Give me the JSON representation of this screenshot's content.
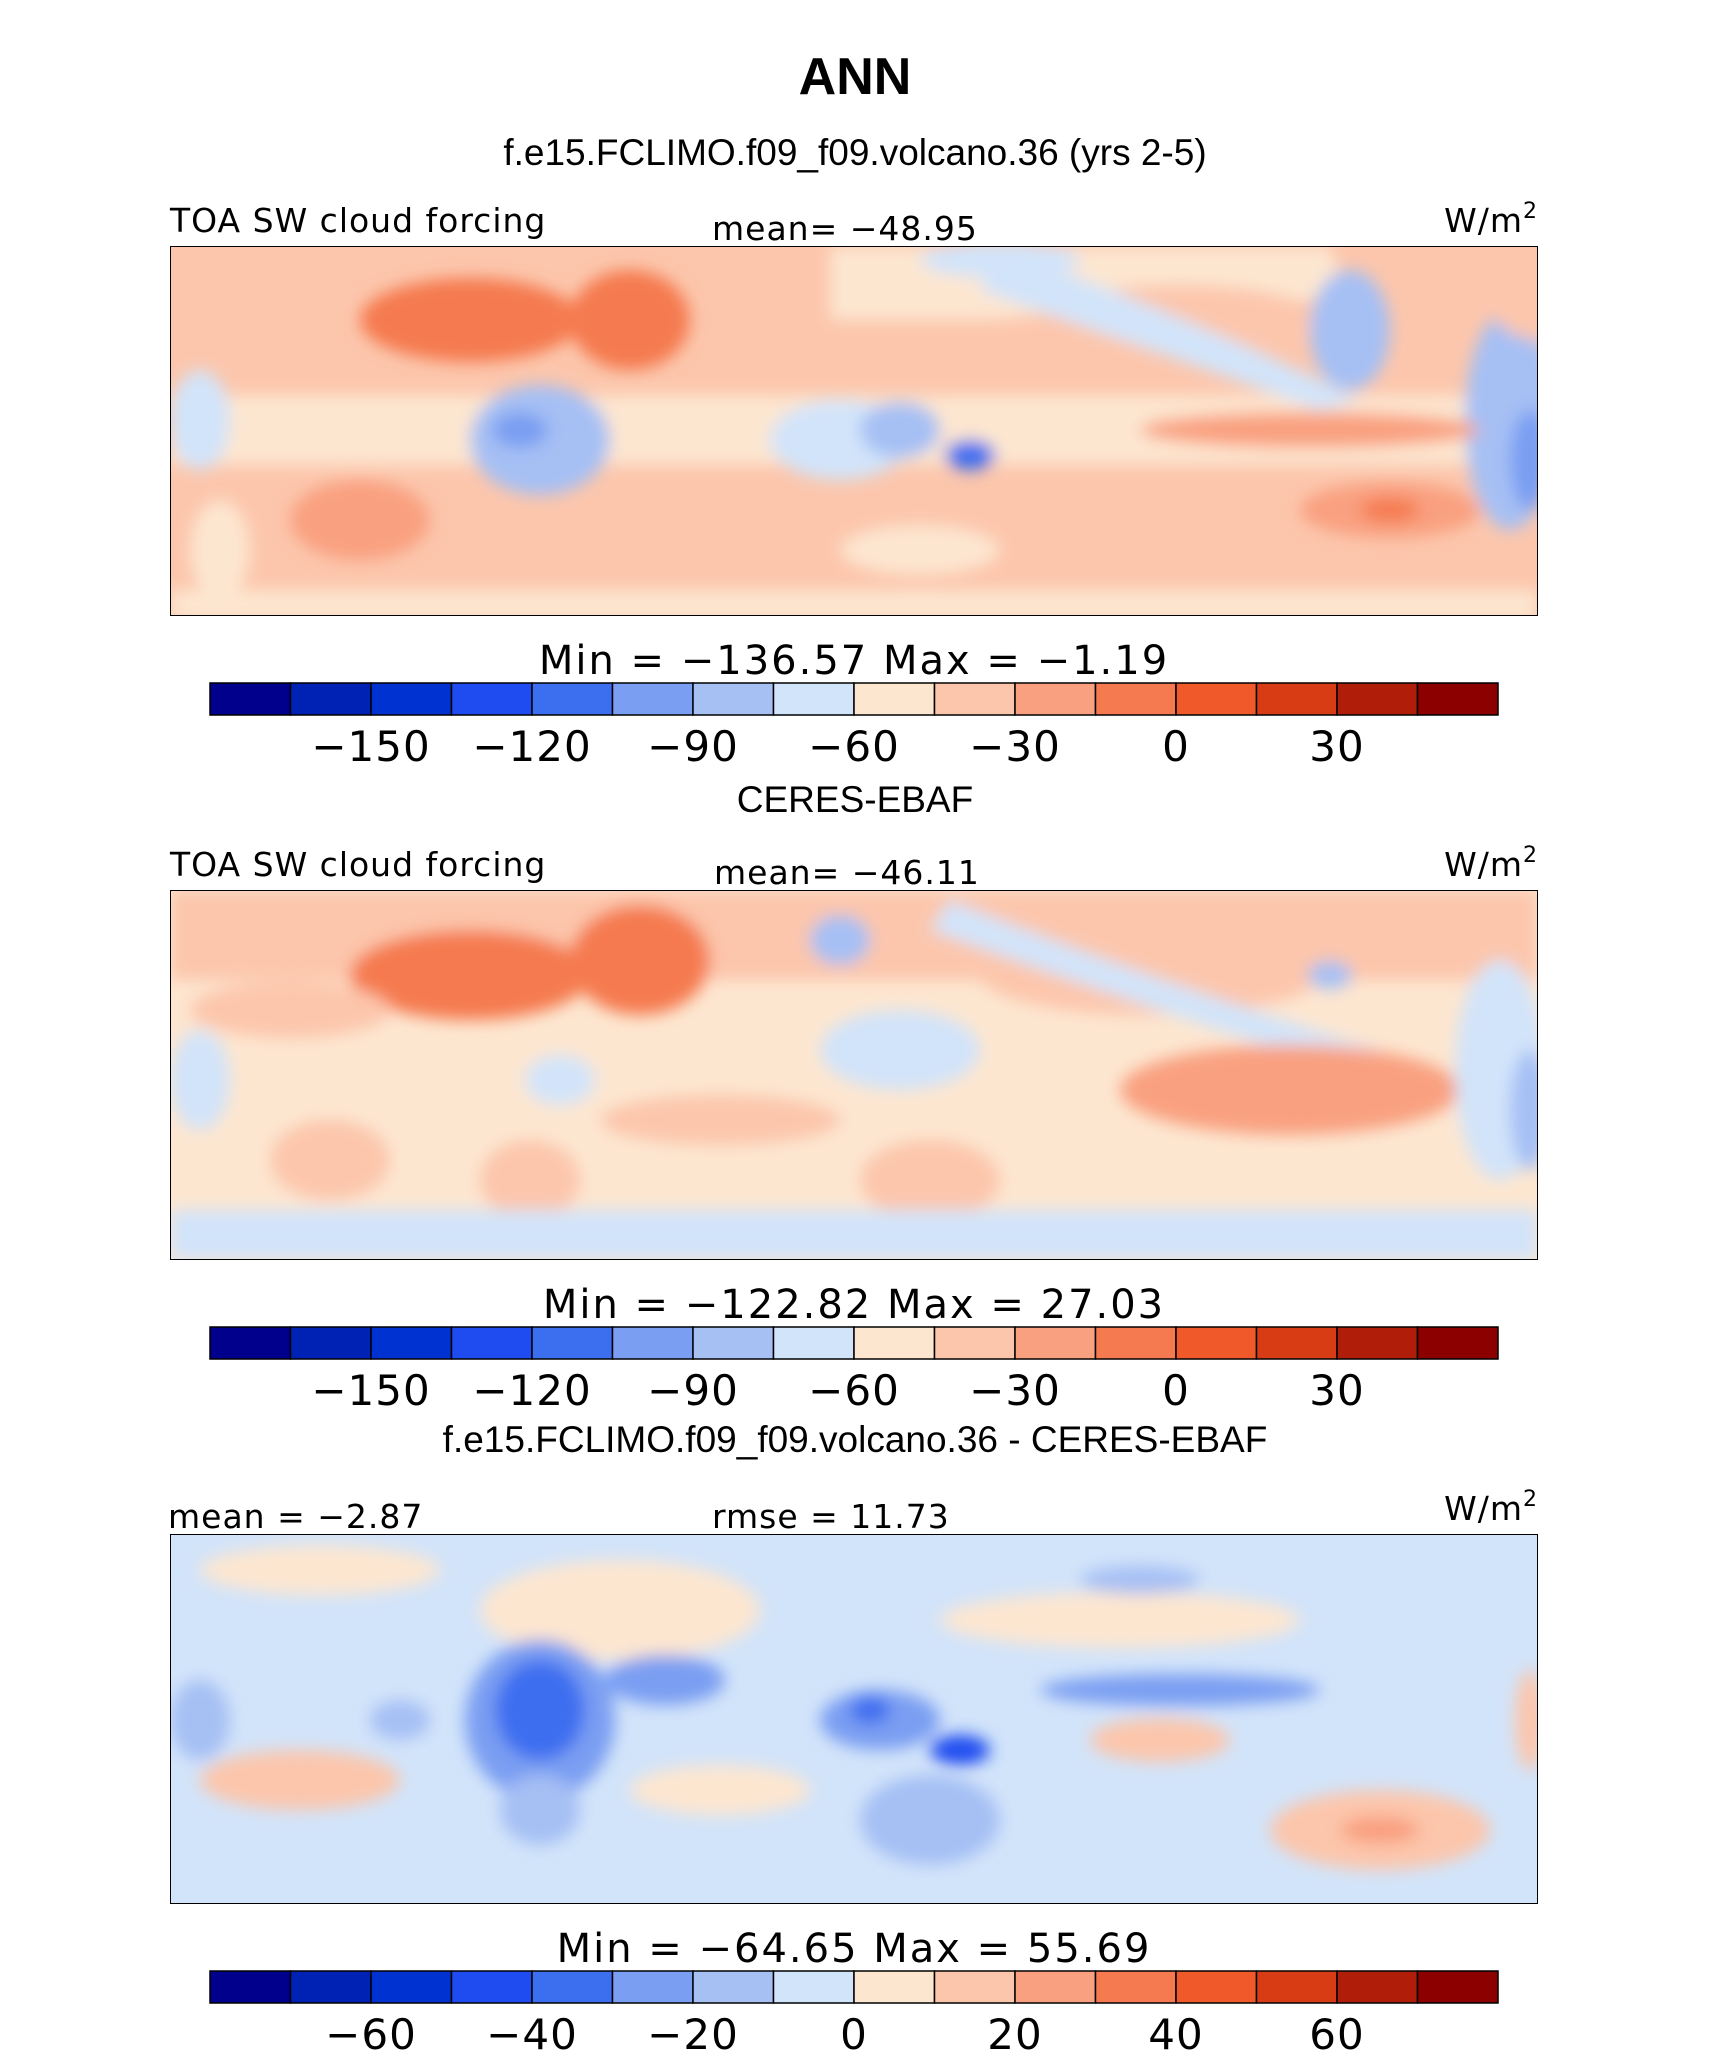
{
  "figure": {
    "title": "ANN",
    "subtitle": "f.e15.FCLIMO.f09_f09.volcano.36 (yrs 2-5)"
  },
  "chart_data": [
    {
      "type": "heatmap",
      "caption": "",
      "left_label": "TOA SW cloud forcing",
      "center_label": "mean= −48.95",
      "units_base": "W/m",
      "units_exp": "2",
      "minmax_label": "Min  =  −136.57  Max  =   −1.19",
      "colorbar_ticks": [
        "−150",
        "−120",
        "−90",
        "−60",
        "−30",
        "0",
        "30"
      ],
      "colorbar_values": [
        -150,
        -120,
        -90,
        -60,
        -30,
        0,
        30
      ],
      "colorbar_range": [
        -180,
        60
      ],
      "stats": {
        "mean": -48.95,
        "min": -136.57,
        "max": -1.19
      }
    },
    {
      "type": "heatmap",
      "caption": "CERES-EBAF",
      "left_label": "TOA SW cloud forcing",
      "center_label": "mean= −46.11",
      "units_base": "W/m",
      "units_exp": "2",
      "minmax_label": "Min  =  −122.82  Max  =   27.03",
      "colorbar_ticks": [
        "−150",
        "−120",
        "−90",
        "−60",
        "−30",
        "0",
        "30"
      ],
      "colorbar_values": [
        -150,
        -120,
        -90,
        -60,
        -30,
        0,
        30
      ],
      "colorbar_range": [
        -180,
        60
      ],
      "stats": {
        "mean": -46.11,
        "min": -122.82,
        "max": 27.03
      }
    },
    {
      "type": "heatmap",
      "caption": "f.e15.FCLIMO.f09_f09.volcano.36 - CERES-EBAF",
      "left_label": "mean  =   −2.87",
      "center_label": "rmse  =   11.73",
      "units_base": "W/m",
      "units_exp": "2",
      "minmax_label": "Min  =  −64.65  Max  =   55.69",
      "colorbar_ticks": [
        "−60",
        "−40",
        "−20",
        "0",
        "20",
        "40",
        "60"
      ],
      "colorbar_values": [
        -60,
        -40,
        -20,
        0,
        20,
        40,
        60
      ],
      "colorbar_range": [
        -80,
        80
      ],
      "stats": {
        "mean": -2.87,
        "rmse": 11.73,
        "min": -64.65,
        "max": 55.69
      }
    }
  ],
  "colorbar_colors": [
    "#00008c",
    "#0022b4",
    "#0032d2",
    "#1e4cf0",
    "#3c6ef0",
    "#7a9ef2",
    "#a6c0f4",
    "#d2e4fa",
    "#fde6d0",
    "#fcc6ac",
    "#f9a080",
    "#f57a50",
    "#f05a2a",
    "#d83c14",
    "#b01e0a",
    "#8c0000"
  ]
}
